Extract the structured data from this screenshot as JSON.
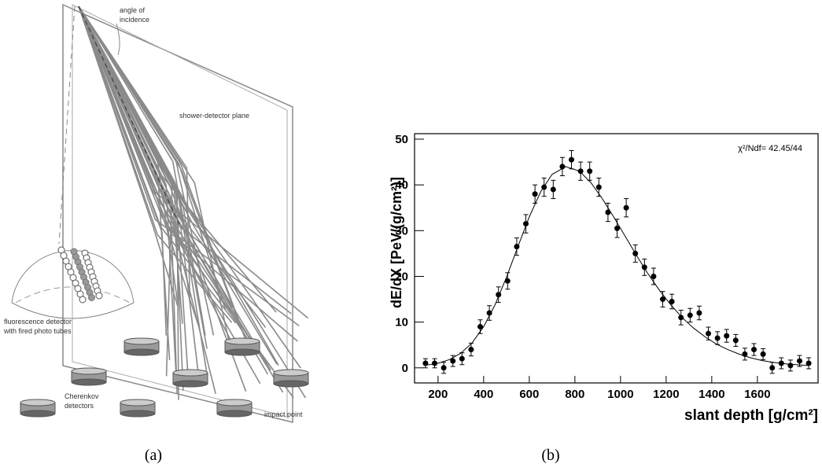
{
  "figure": {
    "diagram": {
      "angle_of_incidence": [
        "angle of",
        "incidence"
      ],
      "plane": "shower-detector plane",
      "fluorescence": [
        "fluorescence detector",
        "with fired photo tubes"
      ],
      "cherenkov": [
        "Cherenkov",
        "detectors"
      ],
      "impact": "impact point"
    },
    "captions": [
      "(a)",
      "(b)"
    ]
  },
  "chart_data": {
    "type": "scatter",
    "xlabel": "slant depth [g/cm²]",
    "ylabel": "dE/dX [PeV/(g/cm²)]",
    "annotation": "χ²/Ndf=  42.45/44",
    "xlim": [
      97,
      1866
    ],
    "ylim": [
      -3.3,
      51.2
    ],
    "xticks": [
      200,
      400,
      600,
      800,
      1000,
      1200,
      1400,
      1600
    ],
    "yticks": [
      0,
      10,
      20,
      30,
      40,
      50
    ],
    "points": {
      "color": "#000000",
      "x": [
        145,
        185,
        225,
        265,
        305,
        345,
        385,
        425,
        465,
        505,
        545,
        585,
        625,
        665,
        705,
        745,
        785,
        825,
        865,
        905,
        945,
        985,
        1025,
        1065,
        1105,
        1145,
        1185,
        1225,
        1265,
        1305,
        1345,
        1385,
        1425,
        1465,
        1505,
        1545,
        1585,
        1625,
        1665,
        1705,
        1745,
        1785,
        1825
      ],
      "values": [
        1,
        1,
        0,
        1.5,
        2,
        4,
        9,
        12,
        16,
        19,
        26.5,
        31.5,
        38,
        39.5,
        39,
        44,
        45.5,
        43,
        43,
        39.5,
        34,
        30.5,
        35,
        25,
        22,
        20,
        15,
        14.5,
        11,
        11.5,
        12,
        7.5,
        6.5,
        7,
        6,
        3,
        4,
        3,
        0,
        1,
        0.5,
        1.5,
        1
      ],
      "errors": [
        1,
        1,
        1.2,
        1.2,
        1.3,
        1.4,
        1.5,
        1.6,
        1.7,
        1.8,
        1.9,
        2,
        2,
        2,
        2,
        2,
        2,
        2,
        2,
        2,
        2,
        2,
        2,
        1.9,
        1.8,
        1.8,
        1.7,
        1.6,
        1.6,
        1.5,
        1.5,
        1.4,
        1.4,
        1.4,
        1.3,
        1.3,
        1.3,
        1.2,
        1.2,
        1.2,
        1.2,
        1.2,
        1.2
      ]
    },
    "fit": {
      "color": "#000000",
      "x": [
        150,
        200,
        250,
        300,
        350,
        400,
        450,
        500,
        550,
        600,
        650,
        700,
        760,
        820,
        870,
        920,
        970,
        1020,
        1070,
        1120,
        1170,
        1220,
        1270,
        1320,
        1370,
        1420,
        1470,
        1520,
        1570,
        1620,
        1670,
        1720,
        1770,
        1820
      ],
      "values": [
        0.6,
        1,
        1.8,
        3.2,
        5.5,
        9,
        13.8,
        19.8,
        26.5,
        33,
        38.5,
        42.3,
        44,
        43,
        40.5,
        37,
        33,
        28.8,
        24.6,
        20.6,
        17,
        13.8,
        11,
        8.7,
        6.8,
        5.2,
        4,
        3,
        2.2,
        1.6,
        1.2,
        0.9,
        0.7,
        0.5
      ]
    }
  }
}
